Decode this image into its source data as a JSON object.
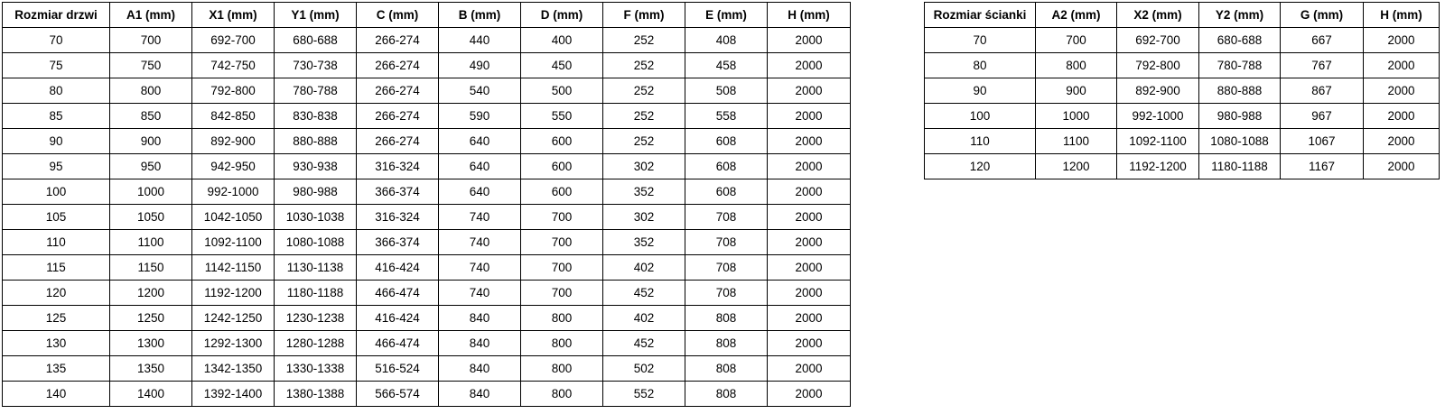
{
  "page": {
    "background_color": "#ffffff",
    "border_color": "#000000",
    "text_color": "#000000"
  },
  "tables": [
    {
      "id": "door-size-table",
      "title_column": "Rozmiar drzwi",
      "headers": [
        "Rozmiar drzwi",
        "A1 (mm)",
        "X1 (mm)",
        "Y1 (mm)",
        "C (mm)",
        "B (mm)",
        "D (mm)",
        "F (mm)",
        "E (mm)",
        "H (mm)"
      ],
      "rows": [
        [
          "70",
          "700",
          "692-700",
          "680-688",
          "266-274",
          "440",
          "400",
          "252",
          "408",
          "2000"
        ],
        [
          "75",
          "750",
          "742-750",
          "730-738",
          "266-274",
          "490",
          "450",
          "252",
          "458",
          "2000"
        ],
        [
          "80",
          "800",
          "792-800",
          "780-788",
          "266-274",
          "540",
          "500",
          "252",
          "508",
          "2000"
        ],
        [
          "85",
          "850",
          "842-850",
          "830-838",
          "266-274",
          "590",
          "550",
          "252",
          "558",
          "2000"
        ],
        [
          "90",
          "900",
          "892-900",
          "880-888",
          "266-274",
          "640",
          "600",
          "252",
          "608",
          "2000"
        ],
        [
          "95",
          "950",
          "942-950",
          "930-938",
          "316-324",
          "640",
          "600",
          "302",
          "608",
          "2000"
        ],
        [
          "100",
          "1000",
          "992-1000",
          "980-988",
          "366-374",
          "640",
          "600",
          "352",
          "608",
          "2000"
        ],
        [
          "105",
          "1050",
          "1042-1050",
          "1030-1038",
          "316-324",
          "740",
          "700",
          "302",
          "708",
          "2000"
        ],
        [
          "110",
          "1100",
          "1092-1100",
          "1080-1088",
          "366-374",
          "740",
          "700",
          "352",
          "708",
          "2000"
        ],
        [
          "115",
          "1150",
          "1142-1150",
          "1130-1138",
          "416-424",
          "740",
          "700",
          "402",
          "708",
          "2000"
        ],
        [
          "120",
          "1200",
          "1192-1200",
          "1180-1188",
          "466-474",
          "740",
          "700",
          "452",
          "708",
          "2000"
        ],
        [
          "125",
          "1250",
          "1242-1250",
          "1230-1238",
          "416-424",
          "840",
          "800",
          "402",
          "808",
          "2000"
        ],
        [
          "130",
          "1300",
          "1292-1300",
          "1280-1288",
          "466-474",
          "840",
          "800",
          "452",
          "808",
          "2000"
        ],
        [
          "135",
          "1350",
          "1342-1350",
          "1330-1338",
          "516-524",
          "840",
          "800",
          "502",
          "808",
          "2000"
        ],
        [
          "140",
          "1400",
          "1392-1400",
          "1380-1388",
          "566-574",
          "840",
          "800",
          "552",
          "808",
          "2000"
        ]
      ]
    },
    {
      "id": "wall-size-table",
      "title_column": "Rozmiar ścianki",
      "headers": [
        "Rozmiar ścianki",
        "A2 (mm)",
        "X2 (mm)",
        "Y2 (mm)",
        "G (mm)",
        "H (mm)"
      ],
      "rows": [
        [
          "70",
          "700",
          "692-700",
          "680-688",
          "667",
          "2000"
        ],
        [
          "80",
          "800",
          "792-800",
          "780-788",
          "767",
          "2000"
        ],
        [
          "90",
          "900",
          "892-900",
          "880-888",
          "867",
          "2000"
        ],
        [
          "100",
          "1000",
          "992-1000",
          "980-988",
          "967",
          "2000"
        ],
        [
          "110",
          "1100",
          "1092-1100",
          "1080-1088",
          "1067",
          "2000"
        ],
        [
          "120",
          "1200",
          "1192-1200",
          "1180-1188",
          "1167",
          "2000"
        ]
      ]
    }
  ]
}
